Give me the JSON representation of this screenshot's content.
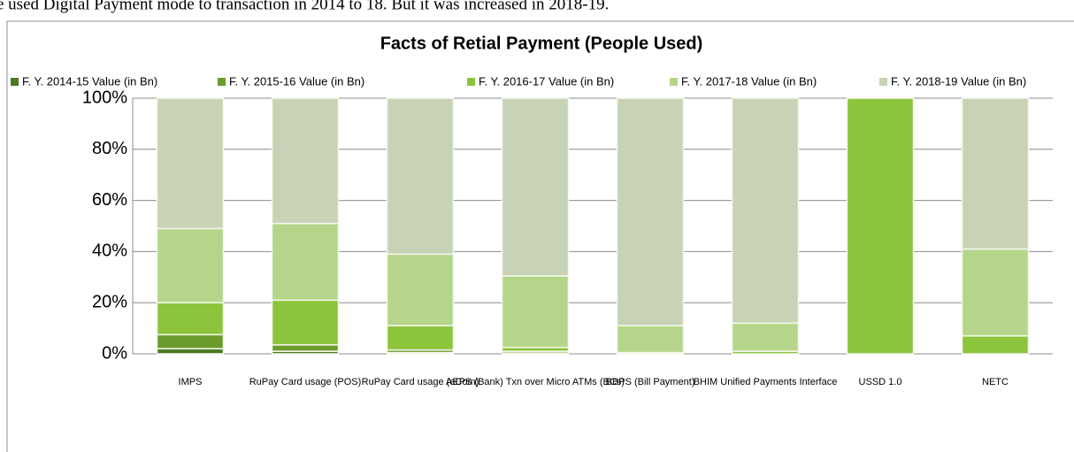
{
  "page_text": "e used Digital Payment mode to transaction in 2014 to 18. But it was increased in 2018-19.",
  "chart_data": {
    "type": "stacked_bar_100",
    "title": "Facts of Retial Payment (People Used)",
    "categories": [
      "IMPS",
      "RuPay Card usage (POS)",
      "RuPay Card usage (eCom)",
      "AEPS (Bank) Txn over Micro ATMs (BCs)",
      "BBPS (Bill Payment)",
      "BHIM Unified Payments Interface",
      "USSD 1.0",
      "NETC"
    ],
    "series": [
      {
        "name": "F. Y. 2014-15 Value (in Bn)",
        "color": "#4e7a26",
        "values": [
          2,
          1,
          0.5,
          0.3,
          0,
          0,
          0,
          0
        ]
      },
      {
        "name": "F. Y. 2015-16 Value (in Bn)",
        "color": "#6b9b2b",
        "values": [
          5.5,
          2.5,
          1,
          0.7,
          0,
          0,
          0,
          0
        ]
      },
      {
        "name": "F. Y. 2016-17 Value (in Bn)",
        "color": "#8cc43c",
        "values": [
          12.5,
          17.5,
          9.5,
          1.5,
          0.5,
          1,
          100,
          7
        ]
      },
      {
        "name": "F. Y. 2017-18 Value (in Bn)",
        "color": "#b5d68a",
        "values": [
          29,
          30,
          28,
          28,
          10.5,
          11,
          0,
          34
        ]
      },
      {
        "name": "F. Y. 2018-19 Value (in Bn)",
        "color": "#c8d3b6",
        "values": [
          51,
          49,
          61,
          69.5,
          89,
          88,
          0,
          59
        ]
      }
    ],
    "ylim": [
      0,
      100
    ],
    "yticks": [
      {
        "value": 0,
        "label": "0%"
      },
      {
        "value": 20,
        "label": "20%"
      },
      {
        "value": 40,
        "label": "40%"
      },
      {
        "value": 60,
        "label": "60%"
      },
      {
        "value": 80,
        "label": "80%"
      },
      {
        "value": 100,
        "label": "100%"
      }
    ],
    "grid": true,
    "legend": "top"
  }
}
